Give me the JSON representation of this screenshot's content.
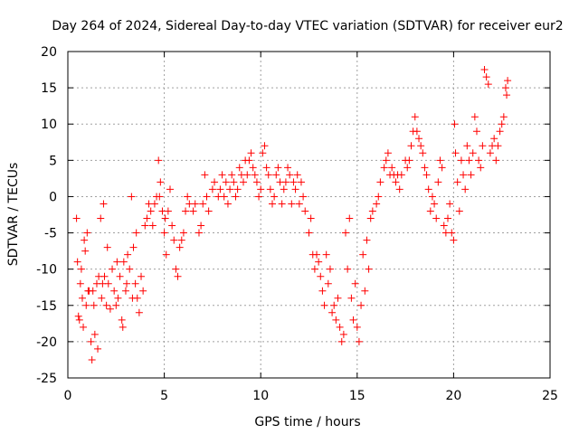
{
  "chart_data": {
    "type": "scatter",
    "title": "Day 264 of 2024, Sidereal Day-to-day VTEC variation (SDTVAR) for receiver eur2",
    "xlabel": "GPS time / hours",
    "ylabel": "SDTVAR / TECUs",
    "xlim": [
      0,
      25
    ],
    "ylim": [
      -25,
      20
    ],
    "xticks": [
      0,
      5,
      10,
      15,
      20,
      25
    ],
    "yticks": [
      -25,
      -20,
      -15,
      -10,
      -5,
      0,
      5,
      10,
      15,
      20
    ],
    "xtick_labels": [
      "0",
      "5",
      "10",
      "15",
      "20",
      "25"
    ],
    "ytick_labels": [
      "-25",
      "-20",
      "-15",
      "-10",
      "-5",
      "0",
      "5",
      "10",
      "15",
      "20"
    ],
    "grid": true,
    "marker": "plus",
    "color": "#ff0000",
    "series": [
      {
        "name": "SDTVAR",
        "points": [
          [
            0.45,
            -3
          ],
          [
            0.5,
            -9
          ],
          [
            0.55,
            -16.5
          ],
          [
            0.6,
            -17
          ],
          [
            0.65,
            -12
          ],
          [
            0.7,
            -10
          ],
          [
            0.75,
            -14
          ],
          [
            0.8,
            -18
          ],
          [
            0.85,
            -6
          ],
          [
            0.9,
            -7.5
          ],
          [
            0.95,
            -15
          ],
          [
            1.0,
            -5
          ],
          [
            1.05,
            -13
          ],
          [
            1.1,
            -13
          ],
          [
            1.2,
            -20
          ],
          [
            1.25,
            -22.5
          ],
          [
            1.3,
            -13
          ],
          [
            1.35,
            -15
          ],
          [
            1.4,
            -19
          ],
          [
            1.5,
            -12
          ],
          [
            1.55,
            -21
          ],
          [
            1.6,
            -11
          ],
          [
            1.7,
            -3
          ],
          [
            1.75,
            -14
          ],
          [
            1.8,
            -12
          ],
          [
            1.85,
            -1
          ],
          [
            1.9,
            -11
          ],
          [
            2.0,
            -15
          ],
          [
            2.05,
            -7
          ],
          [
            2.1,
            -12
          ],
          [
            2.2,
            -15.5
          ],
          [
            2.3,
            -10
          ],
          [
            2.4,
            -13
          ],
          [
            2.5,
            -15
          ],
          [
            2.55,
            -9
          ],
          [
            2.6,
            -14
          ],
          [
            2.7,
            -11
          ],
          [
            2.8,
            -17
          ],
          [
            2.85,
            -18
          ],
          [
            2.9,
            -9
          ],
          [
            3.0,
            -13
          ],
          [
            3.05,
            -12
          ],
          [
            3.1,
            -8
          ],
          [
            3.2,
            -10
          ],
          [
            3.3,
            0
          ],
          [
            3.35,
            -14
          ],
          [
            3.4,
            -7
          ],
          [
            3.5,
            -12
          ],
          [
            3.55,
            -5
          ],
          [
            3.6,
            -14
          ],
          [
            3.7,
            -16
          ],
          [
            3.8,
            -11
          ],
          [
            3.9,
            -13
          ],
          [
            4.0,
            -4
          ],
          [
            4.1,
            -3
          ],
          [
            4.2,
            -1
          ],
          [
            4.3,
            -2
          ],
          [
            4.4,
            -4
          ],
          [
            4.5,
            -1
          ],
          [
            4.6,
            0
          ],
          [
            4.7,
            5
          ],
          [
            4.75,
            0
          ],
          [
            4.8,
            2
          ],
          [
            4.9,
            -2
          ],
          [
            5.0,
            -5
          ],
          [
            5.05,
            -3
          ],
          [
            5.1,
            -8
          ],
          [
            5.2,
            -2
          ],
          [
            5.3,
            1
          ],
          [
            5.4,
            -4
          ],
          [
            5.5,
            -6
          ],
          [
            5.6,
            -10
          ],
          [
            5.7,
            -11
          ],
          [
            5.8,
            -7
          ],
          [
            5.9,
            -6
          ],
          [
            6.0,
            -5
          ],
          [
            6.1,
            -2
          ],
          [
            6.2,
            0
          ],
          [
            6.3,
            -1
          ],
          [
            6.5,
            -2
          ],
          [
            6.6,
            -1
          ],
          [
            6.8,
            -5
          ],
          [
            6.9,
            -4
          ],
          [
            7.0,
            -1
          ],
          [
            7.1,
            3
          ],
          [
            7.2,
            0
          ],
          [
            7.3,
            -2
          ],
          [
            7.5,
            1
          ],
          [
            7.6,
            2
          ],
          [
            7.8,
            0
          ],
          [
            7.9,
            1
          ],
          [
            8.0,
            3
          ],
          [
            8.1,
            0
          ],
          [
            8.2,
            2
          ],
          [
            8.3,
            -1
          ],
          [
            8.4,
            1
          ],
          [
            8.5,
            3
          ],
          [
            8.6,
            2
          ],
          [
            8.7,
            0
          ],
          [
            8.8,
            1
          ],
          [
            8.9,
            4
          ],
          [
            9.0,
            3
          ],
          [
            9.1,
            2
          ],
          [
            9.2,
            5
          ],
          [
            9.3,
            3
          ],
          [
            9.4,
            5
          ],
          [
            9.5,
            6
          ],
          [
            9.6,
            4
          ],
          [
            9.7,
            3
          ],
          [
            9.8,
            2
          ],
          [
            9.9,
            0
          ],
          [
            10.0,
            1
          ],
          [
            10.1,
            6
          ],
          [
            10.2,
            7
          ],
          [
            10.3,
            4
          ],
          [
            10.4,
            3
          ],
          [
            10.5,
            1
          ],
          [
            10.6,
            -1
          ],
          [
            10.7,
            0
          ],
          [
            10.8,
            3
          ],
          [
            10.9,
            4
          ],
          [
            11.0,
            2
          ],
          [
            11.1,
            -1
          ],
          [
            11.2,
            1
          ],
          [
            11.3,
            2
          ],
          [
            11.4,
            4
          ],
          [
            11.5,
            3
          ],
          [
            11.6,
            -1
          ],
          [
            11.7,
            2
          ],
          [
            11.8,
            1
          ],
          [
            11.9,
            3
          ],
          [
            12.0,
            -1
          ],
          [
            12.1,
            2
          ],
          [
            12.2,
            0
          ],
          [
            12.3,
            -2
          ],
          [
            12.5,
            -5
          ],
          [
            12.6,
            -3
          ],
          [
            12.7,
            -8
          ],
          [
            12.8,
            -10
          ],
          [
            12.9,
            -8
          ],
          [
            13.0,
            -9
          ],
          [
            13.1,
            -11
          ],
          [
            13.2,
            -13
          ],
          [
            13.3,
            -15
          ],
          [
            13.4,
            -8
          ],
          [
            13.5,
            -12
          ],
          [
            13.6,
            -10
          ],
          [
            13.7,
            -16
          ],
          [
            13.8,
            -15
          ],
          [
            13.9,
            -17
          ],
          [
            14.0,
            -14
          ],
          [
            14.1,
            -18
          ],
          [
            14.2,
            -20
          ],
          [
            14.3,
            -19
          ],
          [
            14.4,
            -5
          ],
          [
            14.5,
            -10
          ],
          [
            14.6,
            -3
          ],
          [
            14.7,
            -14
          ],
          [
            14.8,
            -17
          ],
          [
            14.9,
            -12
          ],
          [
            15.0,
            -18
          ],
          [
            15.1,
            -20
          ],
          [
            15.2,
            -15
          ],
          [
            15.3,
            -8
          ],
          [
            15.4,
            -13
          ],
          [
            15.5,
            -6
          ],
          [
            15.6,
            -10
          ],
          [
            15.7,
            -3
          ],
          [
            15.8,
            -2
          ],
          [
            16.0,
            -1
          ],
          [
            16.1,
            0
          ],
          [
            16.2,
            2
          ],
          [
            16.4,
            4
          ],
          [
            16.5,
            5
          ],
          [
            16.6,
            6
          ],
          [
            16.7,
            3
          ],
          [
            16.8,
            4
          ],
          [
            16.9,
            3
          ],
          [
            17.0,
            2
          ],
          [
            17.1,
            3
          ],
          [
            17.2,
            1
          ],
          [
            17.3,
            3
          ],
          [
            17.5,
            5
          ],
          [
            17.6,
            4
          ],
          [
            17.7,
            5
          ],
          [
            17.8,
            7
          ],
          [
            17.9,
            9
          ],
          [
            18.0,
            11
          ],
          [
            18.1,
            9
          ],
          [
            18.2,
            8
          ],
          [
            18.3,
            7
          ],
          [
            18.4,
            6
          ],
          [
            18.5,
            4
          ],
          [
            18.6,
            3
          ],
          [
            18.7,
            1
          ],
          [
            18.8,
            -2
          ],
          [
            18.9,
            0
          ],
          [
            19.0,
            -1
          ],
          [
            19.1,
            -3
          ],
          [
            19.2,
            2
          ],
          [
            19.3,
            5
          ],
          [
            19.4,
            4
          ],
          [
            19.5,
            -4
          ],
          [
            19.6,
            -5
          ],
          [
            19.7,
            -3
          ],
          [
            19.8,
            -1
          ],
          [
            19.9,
            -5
          ],
          [
            20.0,
            -6
          ],
          [
            20.05,
            10
          ],
          [
            20.1,
            6
          ],
          [
            20.2,
            2
          ],
          [
            20.3,
            -2
          ],
          [
            20.4,
            5
          ],
          [
            20.5,
            3
          ],
          [
            20.6,
            1
          ],
          [
            20.7,
            7
          ],
          [
            20.8,
            5
          ],
          [
            20.9,
            3
          ],
          [
            21.0,
            6
          ],
          [
            21.1,
            11
          ],
          [
            21.2,
            9
          ],
          [
            21.3,
            5
          ],
          [
            21.4,
            4
          ],
          [
            21.5,
            7
          ],
          [
            21.6,
            17.5
          ],
          [
            21.7,
            16.5
          ],
          [
            21.8,
            15.5
          ],
          [
            21.9,
            6
          ],
          [
            22.0,
            7
          ],
          [
            22.1,
            8
          ],
          [
            22.2,
            5
          ],
          [
            22.3,
            7
          ],
          [
            22.4,
            9
          ],
          [
            22.5,
            10
          ],
          [
            22.6,
            11
          ],
          [
            22.7,
            15
          ],
          [
            22.75,
            14
          ],
          [
            22.8,
            16
          ]
        ]
      }
    ]
  }
}
